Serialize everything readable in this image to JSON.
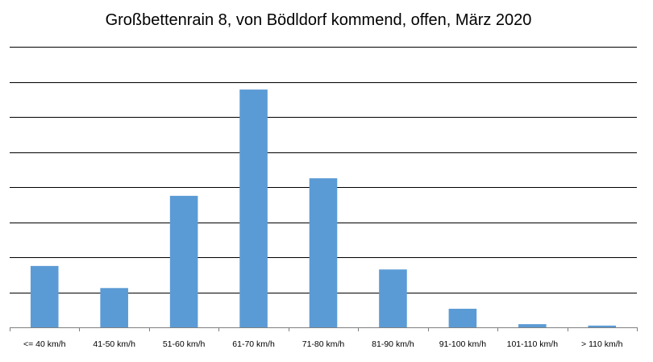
{
  "chart_data": {
    "type": "bar",
    "title": "Großbettenrain 8, von Bödldorf kommend, offen, März 2020",
    "xlabel": "",
    "ylabel": "",
    "categories": [
      "<= 40 km/h",
      "41-50 km/h",
      "51-60 km/h",
      "61-70 km/h",
      "71-80 km/h",
      "81-90 km/h",
      "91-100 km/h",
      "101-110 km/h",
      "> 110 km/h"
    ],
    "values": [
      17.5,
      11.2,
      37.5,
      67.8,
      42.5,
      16.5,
      5.3,
      0.9,
      0.5
    ],
    "ylim": [
      0,
      80
    ],
    "grid": true,
    "y_tick_labels_visible": false,
    "legend": "none",
    "bar_color": "#5B9BD5",
    "gridline_color": "#000000"
  }
}
